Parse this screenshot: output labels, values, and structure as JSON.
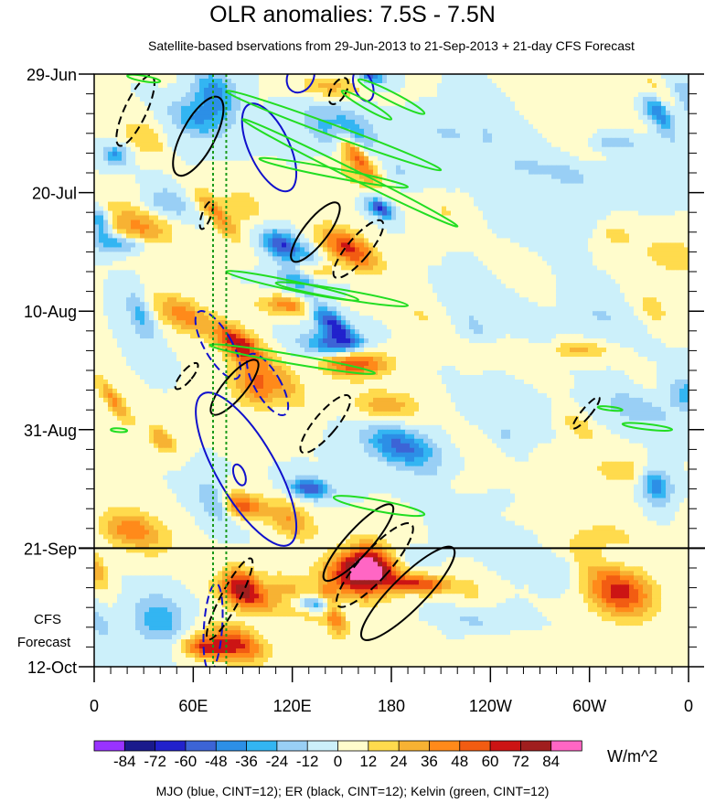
{
  "title": "OLR anomalies: 7.5S - 7.5N",
  "subtitle": "Satellite-based bservations from 29-Jun-2013 to 21-Sep-2013 + 21-day CFS Forecast",
  "footer": "MJO (blue, CINT=12); ER (black, CINT=12); Kelvin (green, CINT=12)",
  "forecast_label": [
    "CFS",
    "Forecast"
  ],
  "chart_data": {
    "type": "heatmap",
    "title": "OLR anomalies: 7.5S - 7.5N",
    "x_ticks": [
      {
        "lon": 0,
        "label": "0"
      },
      {
        "lon": 60,
        "label": "60E"
      },
      {
        "lon": 120,
        "label": "120E"
      },
      {
        "lon": 180,
        "label": "180"
      },
      {
        "lon": 240,
        "label": "120W"
      },
      {
        "lon": 300,
        "label": "60W"
      },
      {
        "lon": 360,
        "label": "0"
      }
    ],
    "xlim": [
      0,
      360
    ],
    "y_ticks": [
      {
        "day": 0,
        "label": "29-Jun"
      },
      {
        "day": 21,
        "label": "20-Jul"
      },
      {
        "day": 42,
        "label": "10-Aug"
      },
      {
        "day": 63,
        "label": "31-Aug"
      },
      {
        "day": 84,
        "label": "21-Sep"
      },
      {
        "day": 105,
        "label": "12-Oct"
      }
    ],
    "ylim_days": [
      0,
      105
    ],
    "forecast_start_day": 84,
    "reference_lines_lon": [
      72,
      80
    ],
    "colorbar": {
      "unit": "W/m^2",
      "levels": [
        -84,
        -72,
        -60,
        -48,
        -36,
        -24,
        -12,
        0,
        12,
        24,
        36,
        48,
        60,
        72,
        84
      ],
      "labels": [
        "-84",
        "-72",
        "-60",
        "-48",
        "-36",
        "-24",
        "-12",
        "0",
        "12",
        "24",
        "36",
        "48",
        "60",
        "72",
        "84"
      ],
      "colors": [
        "#9933ff",
        "#1a1a8c",
        "#2121cc",
        "#3c64d6",
        "#2c8fe6",
        "#33b5f2",
        "#99cff5",
        "#ccf0fa",
        "#fffccc",
        "#ffdb4d",
        "#f7b233",
        "#ff8a1a",
        "#f25c12",
        "#cc1414",
        "#a01e1e",
        "#ff66c4"
      ]
    },
    "contour_colors": {
      "mjo": "#1010cc",
      "er": "#000000",
      "kelvin": "#22dd22"
    }
  }
}
